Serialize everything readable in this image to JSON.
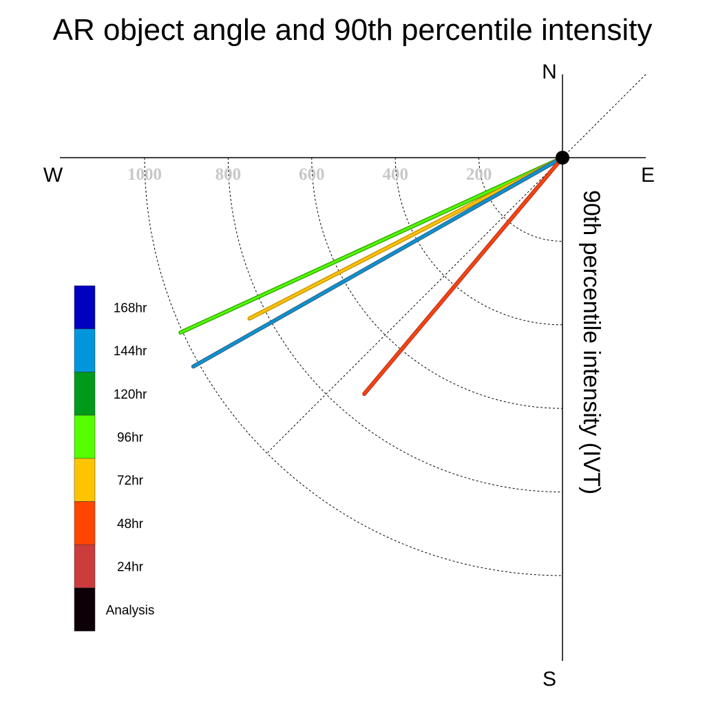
{
  "chart_data": {
    "type": "polar-quadrant",
    "title": "AR object angle and 90th percentile intensity",
    "ylabel": "90th percentile intensity (IVT)",
    "compass": {
      "north": "N",
      "south": "S",
      "east": "E",
      "west": "W"
    },
    "radial_ticks": [
      200,
      400,
      600,
      800,
      1000
    ],
    "radial_range": [
      0,
      1200
    ],
    "grid": true,
    "legend": [
      {
        "label": "168hr",
        "color": "#0000c0"
      },
      {
        "label": "144hr",
        "color": "#0096dc"
      },
      {
        "label": "120hr",
        "color": "#009a1a"
      },
      {
        "label": "96hr",
        "color": "#55ff00"
      },
      {
        "label": "72hr",
        "color": "#ffc400"
      },
      {
        "label": "48hr",
        "color": "#ff4500"
      },
      {
        "label": "24hr",
        "color": "#cc3c3c"
      },
      {
        "label": "Analysis",
        "color": "#0d0007"
      }
    ],
    "series": [
      {
        "label": "96hr",
        "color": "#55ff00",
        "outline": "#33aa00",
        "angle_deg_below_west": 24.6,
        "intensity": 1005
      },
      {
        "label": "72hr",
        "color": "#ffc400",
        "outline": "#c8960a",
        "angle_deg_below_west": 27.2,
        "intensity": 842
      },
      {
        "label": "144hr",
        "color": "#0096dc",
        "outline": "#3a6e8a",
        "angle_deg_below_west": 29.5,
        "intensity": 1015
      },
      {
        "label": "48hr",
        "color": "#ff4500",
        "outline": "#c0392b",
        "angle_deg_below_west": 50.0,
        "intensity": 738
      }
    ]
  }
}
